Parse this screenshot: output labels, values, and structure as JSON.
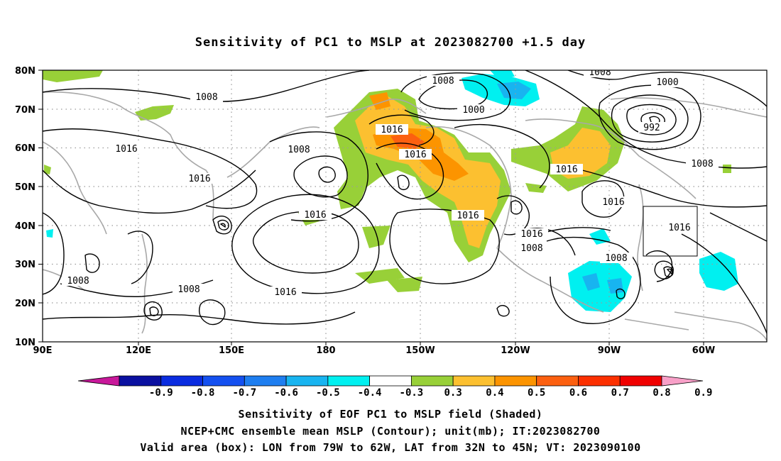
{
  "title": "Sensitivity of PC1 to MSLP at 2023082700 +1.5 day",
  "lat_labels": [
    "80N",
    "70N",
    "60N",
    "50N",
    "40N",
    "30N",
    "20N",
    "10N"
  ],
  "lon_labels": [
    "90E",
    "120E",
    "150E",
    "180",
    "150W",
    "120W",
    "90W",
    "60W"
  ],
  "contour_labels": [
    "1008",
    "1016",
    "1016",
    "1016",
    "1008",
    "1016",
    "1008",
    "1008",
    "1016",
    "1008",
    "1000",
    "1016",
    "1016",
    "1016",
    "1016",
    "1008",
    "1008",
    "1008",
    "1000",
    "992",
    "1008",
    "1016",
    "1016",
    "1008"
  ],
  "colorbar": {
    "labels": [
      "-0.9",
      "-0.8",
      "-0.7",
      "-0.6",
      "-0.5",
      "-0.4",
      "-0.3",
      "0.3",
      "0.4",
      "0.5",
      "0.6",
      "0.7",
      "0.8",
      "0.9"
    ],
    "colors": [
      "#c8189a",
      "#0a10a0",
      "#0a2ce0",
      "#1450f0",
      "#1e7ef0",
      "#18b4f0",
      "#00f0f0",
      "#ffffff",
      "#98d038",
      "#fcc030",
      "#fc9400",
      "#fc6010",
      "#fc3000",
      "#f00000",
      "#f8a0c8"
    ]
  },
  "valid_box": {
    "lon_from": "79W",
    "lon_to": "62W",
    "lat_from": "32N",
    "lat_to": "45N"
  },
  "captions": {
    "line1": "Sensitivity of EOF PC1 to MSLP field (Shaded)",
    "line2": "NCEP+CMC ensemble mean MSLP (Contour); unit(mb); IT:2023082700",
    "line3": "Valid area (box): LON from 79W to 62W, LAT from 32N to 45N; VT: 2023090100"
  }
}
